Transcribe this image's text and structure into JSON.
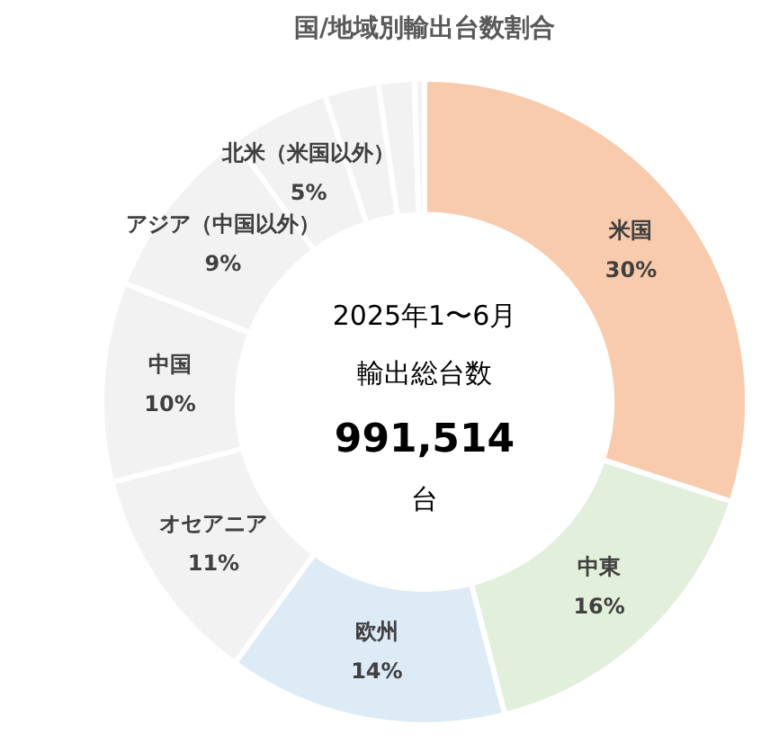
{
  "chart_data": {
    "type": "donut",
    "title": "国/地域別輸出台数割合",
    "categories": [
      "米国",
      "中東",
      "欧州",
      "オセアニア",
      "中国",
      "アジア（中国以外）",
      "北米（米国以外）",
      null,
      null,
      null
    ],
    "values": [
      30,
      16,
      14,
      11,
      10,
      9,
      5,
      2.7,
      1.8,
      0.5
    ],
    "value_labels": [
      "30%",
      "16%",
      "14%",
      "11%",
      "10%",
      "9%",
      "5%",
      null,
      null,
      null
    ],
    "colors": [
      "#f8cbad",
      "#e2efda",
      "#ddebf7",
      "#f2f2f2",
      "#f2f2f2",
      "#f2f2f2",
      "#f2f2f2",
      "#f2f2f2",
      "#f2f2f2",
      "#f2f2f2"
    ],
    "annotations": [
      "2025年1〜6月",
      "輸出総台数",
      "991,514",
      "台"
    ],
    "legend": false
  }
}
